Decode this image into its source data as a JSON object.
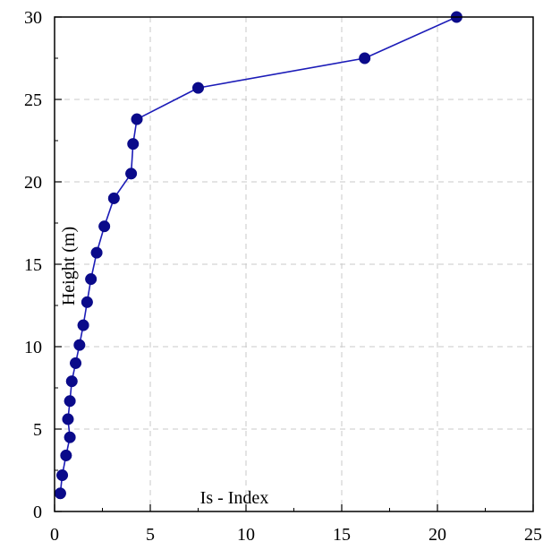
{
  "chart_data": {
    "type": "line",
    "title": "",
    "xlabel": "Is - Index",
    "ylabel": "Height (m)",
    "xlim": [
      0,
      25
    ],
    "ylim": [
      0,
      30
    ],
    "x_ticks": [
      0,
      5,
      10,
      15,
      20,
      25
    ],
    "y_ticks": [
      0,
      5,
      10,
      15,
      20,
      25,
      30
    ],
    "grid": true,
    "legend": "none",
    "series": [
      {
        "color": "#1c1cb8",
        "marker_color": "#0a0a8a",
        "points": [
          {
            "x": 0.3,
            "y": 1.1
          },
          {
            "x": 0.4,
            "y": 2.2
          },
          {
            "x": 0.6,
            "y": 3.4
          },
          {
            "x": 0.8,
            "y": 4.5
          },
          {
            "x": 0.7,
            "y": 5.6
          },
          {
            "x": 0.8,
            "y": 6.7
          },
          {
            "x": 0.9,
            "y": 7.9
          },
          {
            "x": 1.1,
            "y": 9.0
          },
          {
            "x": 1.3,
            "y": 10.1
          },
          {
            "x": 1.5,
            "y": 11.3
          },
          {
            "x": 1.7,
            "y": 12.7
          },
          {
            "x": 1.9,
            "y": 14.1
          },
          {
            "x": 2.2,
            "y": 15.7
          },
          {
            "x": 2.6,
            "y": 17.3
          },
          {
            "x": 3.1,
            "y": 19.0
          },
          {
            "x": 4.0,
            "y": 20.5
          },
          {
            "x": 4.1,
            "y": 22.3
          },
          {
            "x": 4.3,
            "y": 23.8
          },
          {
            "x": 7.5,
            "y": 25.7
          },
          {
            "x": 16.2,
            "y": 27.5
          },
          {
            "x": 21.0,
            "y": 30.0
          }
        ]
      }
    ]
  }
}
